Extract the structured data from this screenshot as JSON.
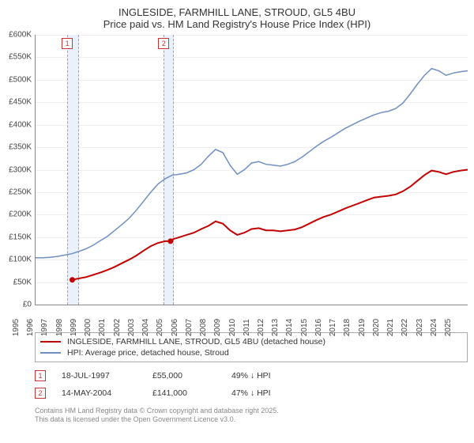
{
  "titles": {
    "line1": "INGLESIDE, FARMHILL LANE, STROUD, GL5 4BU",
    "line2": "Price paid vs. HM Land Registry's House Price Index (HPI)"
  },
  "chart": {
    "type": "line",
    "background_color": "#ffffff",
    "grid_color": "#eeeeee",
    "axis_color": "#888888",
    "x": {
      "min": 1995,
      "max": 2025,
      "step": 1,
      "labels": [
        "1995",
        "1996",
        "1997",
        "1998",
        "1999",
        "2000",
        "2001",
        "2002",
        "2003",
        "2004",
        "2005",
        "2006",
        "2007",
        "2008",
        "2009",
        "2010",
        "2011",
        "2012",
        "2013",
        "2014",
        "2015",
        "2016",
        "2017",
        "2018",
        "2019",
        "2020",
        "2021",
        "2022",
        "2023",
        "2024",
        "2025"
      ]
    },
    "y": {
      "min": 0,
      "max": 600000,
      "step": 50000,
      "labels": [
        "£0",
        "£50K",
        "£100K",
        "£150K",
        "£200K",
        "£250K",
        "£300K",
        "£350K",
        "£400K",
        "£450K",
        "£500K",
        "£550K",
        "£600K"
      ]
    },
    "bands": [
      {
        "from": 1997.2,
        "to": 1998.0,
        "marker": "1"
      },
      {
        "from": 2003.9,
        "to": 2004.6,
        "marker": "2"
      }
    ],
    "series": [
      {
        "id": "red",
        "label": "INGLESIDE, FARMHILL LANE, STROUD, GL5 4BU (detached house)",
        "color": "#c20202",
        "width": 2,
        "points": [
          [
            1997.55,
            55000
          ],
          [
            1998,
            58000
          ],
          [
            1998.5,
            61000
          ],
          [
            1999,
            66000
          ],
          [
            1999.5,
            71000
          ],
          [
            2000,
            77000
          ],
          [
            2000.5,
            84000
          ],
          [
            2001,
            92000
          ],
          [
            2001.5,
            100000
          ],
          [
            2002,
            109000
          ],
          [
            2002.5,
            120000
          ],
          [
            2003,
            130000
          ],
          [
            2003.5,
            137000
          ],
          [
            2004,
            141000
          ],
          [
            2004.37,
            141000
          ],
          [
            2004.5,
            145000
          ],
          [
            2005,
            150000
          ],
          [
            2005.5,
            155000
          ],
          [
            2006,
            160000
          ],
          [
            2006.5,
            168000
          ],
          [
            2007,
            175000
          ],
          [
            2007.5,
            185000
          ],
          [
            2008,
            180000
          ],
          [
            2008.5,
            165000
          ],
          [
            2009,
            155000
          ],
          [
            2009.5,
            160000
          ],
          [
            2010,
            168000
          ],
          [
            2010.5,
            170000
          ],
          [
            2011,
            165000
          ],
          [
            2011.5,
            165000
          ],
          [
            2012,
            163000
          ],
          [
            2012.5,
            165000
          ],
          [
            2013,
            167000
          ],
          [
            2013.5,
            172000
          ],
          [
            2014,
            180000
          ],
          [
            2014.5,
            188000
          ],
          [
            2015,
            195000
          ],
          [
            2015.5,
            200000
          ],
          [
            2016,
            207000
          ],
          [
            2016.5,
            214000
          ],
          [
            2017,
            220000
          ],
          [
            2017.5,
            226000
          ],
          [
            2018,
            232000
          ],
          [
            2018.5,
            238000
          ],
          [
            2019,
            240000
          ],
          [
            2019.5,
            242000
          ],
          [
            2020,
            245000
          ],
          [
            2020.5,
            252000
          ],
          [
            2021,
            262000
          ],
          [
            2021.5,
            275000
          ],
          [
            2022,
            288000
          ],
          [
            2022.5,
            298000
          ],
          [
            2023,
            295000
          ],
          [
            2023.5,
            290000
          ],
          [
            2024,
            295000
          ],
          [
            2024.5,
            298000
          ],
          [
            2025,
            300000
          ]
        ]
      },
      {
        "id": "blue",
        "label": "HPI: Average price, detached house, Stroud",
        "color": "#6f8fc2",
        "width": 1.5,
        "points": [
          [
            1995,
            104000
          ],
          [
            1995.5,
            104000
          ],
          [
            1996,
            105000
          ],
          [
            1996.5,
            107000
          ],
          [
            1997,
            110000
          ],
          [
            1997.5,
            113000
          ],
          [
            1998,
            118000
          ],
          [
            1998.5,
            124000
          ],
          [
            1999,
            132000
          ],
          [
            1999.5,
            142000
          ],
          [
            2000,
            152000
          ],
          [
            2000.5,
            165000
          ],
          [
            2001,
            178000
          ],
          [
            2001.5,
            192000
          ],
          [
            2002,
            210000
          ],
          [
            2002.5,
            230000
          ],
          [
            2003,
            250000
          ],
          [
            2003.5,
            268000
          ],
          [
            2004,
            280000
          ],
          [
            2004.5,
            288000
          ],
          [
            2005,
            290000
          ],
          [
            2005.5,
            293000
          ],
          [
            2006,
            300000
          ],
          [
            2006.5,
            312000
          ],
          [
            2007,
            330000
          ],
          [
            2007.5,
            345000
          ],
          [
            2008,
            338000
          ],
          [
            2008.5,
            310000
          ],
          [
            2009,
            290000
          ],
          [
            2009.5,
            300000
          ],
          [
            2010,
            315000
          ],
          [
            2010.5,
            318000
          ],
          [
            2011,
            312000
          ],
          [
            2011.5,
            310000
          ],
          [
            2012,
            308000
          ],
          [
            2012.5,
            312000
          ],
          [
            2013,
            318000
          ],
          [
            2013.5,
            328000
          ],
          [
            2014,
            340000
          ],
          [
            2014.5,
            352000
          ],
          [
            2015,
            363000
          ],
          [
            2015.5,
            372000
          ],
          [
            2016,
            382000
          ],
          [
            2016.5,
            392000
          ],
          [
            2017,
            400000
          ],
          [
            2017.5,
            408000
          ],
          [
            2018,
            415000
          ],
          [
            2018.5,
            422000
          ],
          [
            2019,
            427000
          ],
          [
            2019.5,
            430000
          ],
          [
            2020,
            436000
          ],
          [
            2020.5,
            448000
          ],
          [
            2021,
            468000
          ],
          [
            2021.5,
            490000
          ],
          [
            2022,
            510000
          ],
          [
            2022.5,
            525000
          ],
          [
            2023,
            520000
          ],
          [
            2023.5,
            510000
          ],
          [
            2024,
            515000
          ],
          [
            2024.5,
            518000
          ],
          [
            2025,
            520000
          ]
        ]
      }
    ],
    "markers_on_red": [
      {
        "x": 1997.55,
        "y": 55000
      },
      {
        "x": 2004.37,
        "y": 141000
      }
    ]
  },
  "legend": {
    "red": "INGLESIDE, FARMHILL LANE, STROUD, GL5 4BU (detached house)",
    "blue": "HPI: Average price, detached house, Stroud"
  },
  "events": [
    {
      "idx": "1",
      "date": "18-JUL-1997",
      "price": "£55,000",
      "delta": "49% ↓ HPI"
    },
    {
      "idx": "2",
      "date": "14-MAY-2004",
      "price": "£141,000",
      "delta": "47% ↓ HPI"
    }
  ],
  "footer": {
    "l1": "Contains HM Land Registry data © Crown copyright and database right 2025.",
    "l2": "This data is licensed under the Open Government Licence v3.0."
  }
}
